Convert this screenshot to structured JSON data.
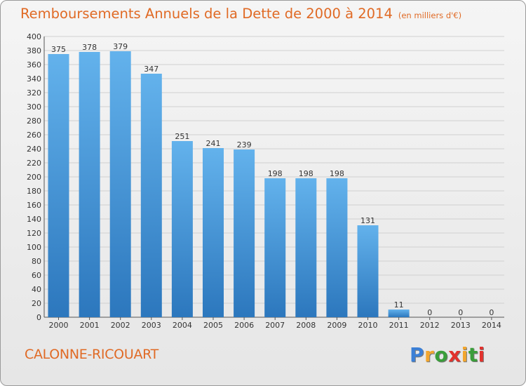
{
  "title": "Remboursements Annuels de la Dette de 2000 à 2014",
  "subtitle": "(en milliers d'€)",
  "commune": "CALONNE-RICOUART",
  "logo": {
    "letters": [
      "P",
      "r",
      "o",
      "x",
      "i",
      "t",
      "i"
    ],
    "colors": [
      "#3b7fd6",
      "#f2a62e",
      "#3a9e3a",
      "#e2322d",
      "#f2a62e",
      "#3a9e3a",
      "#e2322d"
    ]
  },
  "colors": {
    "accent": "#e06a25",
    "bar_top": "#63b2ec",
    "bar_bottom": "#2c77bd",
    "grid": "#d0d0d0"
  },
  "chart_data": {
    "type": "bar",
    "categories": [
      "2000",
      "2001",
      "2002",
      "2003",
      "2004",
      "2005",
      "2006",
      "2007",
      "2008",
      "2009",
      "2010",
      "2011",
      "2012",
      "2013",
      "2014"
    ],
    "values": [
      375,
      378,
      379,
      347,
      251,
      241,
      239,
      198,
      198,
      198,
      131,
      11,
      0,
      0,
      0
    ],
    "ylim": [
      0,
      400
    ],
    "ytick_step": 20,
    "grid": true,
    "legend": "none",
    "data_labels": true
  }
}
